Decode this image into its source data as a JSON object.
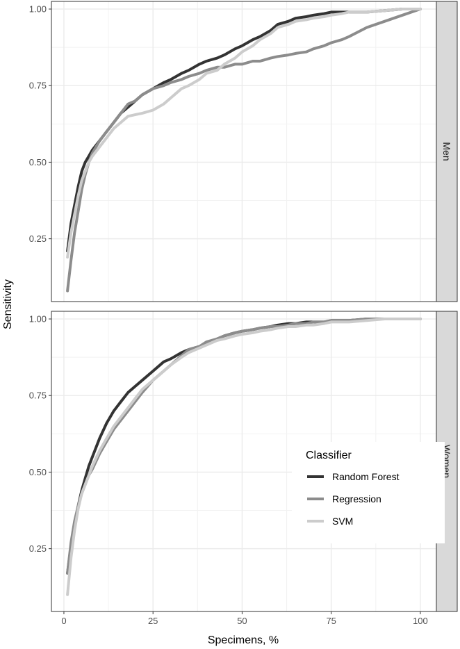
{
  "chart_data": {
    "type": "line",
    "xlabel": "Specimens, %",
    "ylabel": "Sensitivity",
    "xlim": [
      -3.5,
      104.5
    ],
    "ylim": [
      0.045,
      1.025
    ],
    "x_ticks": [
      0,
      25,
      50,
      75,
      100
    ],
    "x_tick_labels": [
      "0",
      "25",
      "50",
      "75",
      "100"
    ],
    "y_ticks": [
      0.25,
      0.5,
      0.75,
      1.0
    ],
    "y_tick_labels": [
      "0.25",
      "0.50",
      "0.75",
      "1.00"
    ],
    "grid": true,
    "legend": {
      "title": "Classifier",
      "position": "inside-bottom-right",
      "entries": [
        "Random Forest",
        "Regression",
        "SVM"
      ]
    },
    "series_colors": {
      "Random Forest": "#333333",
      "Regression": "#8c8c8c",
      "SVM": "#cccccc"
    },
    "panels": [
      {
        "strip": "Men",
        "series": [
          {
            "name": "Random Forest",
            "x": [
              1,
              2,
              3,
              4,
              5,
              6,
              7,
              8,
              10,
              12,
              14,
              16,
              18,
              20,
              22,
              25,
              28,
              30,
              33,
              35,
              38,
              40,
              43,
              45,
              48,
              50,
              53,
              55,
              58,
              60,
              63,
              65,
              68,
              70,
              73,
              75,
              78,
              80,
              85,
              90,
              95,
              100
            ],
            "y": [
              0.21,
              0.3,
              0.36,
              0.42,
              0.47,
              0.5,
              0.52,
              0.54,
              0.57,
              0.6,
              0.63,
              0.66,
              0.68,
              0.7,
              0.72,
              0.74,
              0.76,
              0.77,
              0.79,
              0.8,
              0.82,
              0.83,
              0.84,
              0.85,
              0.87,
              0.88,
              0.9,
              0.91,
              0.93,
              0.95,
              0.96,
              0.97,
              0.975,
              0.98,
              0.985,
              0.99,
              0.99,
              0.99,
              0.99,
              0.995,
              1.0,
              1.0
            ]
          },
          {
            "name": "Regression",
            "x": [
              1,
              2,
              3,
              4,
              5,
              6,
              7,
              8,
              10,
              12,
              14,
              16,
              18,
              20,
              22,
              25,
              28,
              30,
              33,
              35,
              38,
              40,
              43,
              45,
              48,
              50,
              53,
              55,
              58,
              60,
              63,
              65,
              68,
              70,
              73,
              75,
              78,
              80,
              85,
              90,
              95,
              100
            ],
            "y": [
              0.08,
              0.18,
              0.27,
              0.34,
              0.41,
              0.46,
              0.5,
              0.53,
              0.57,
              0.6,
              0.63,
              0.66,
              0.69,
              0.7,
              0.72,
              0.74,
              0.75,
              0.76,
              0.77,
              0.78,
              0.79,
              0.8,
              0.81,
              0.81,
              0.82,
              0.82,
              0.83,
              0.83,
              0.84,
              0.845,
              0.85,
              0.855,
              0.86,
              0.87,
              0.88,
              0.89,
              0.9,
              0.91,
              0.94,
              0.96,
              0.98,
              1.0
            ]
          },
          {
            "name": "SVM",
            "x": [
              1,
              2,
              3,
              4,
              5,
              6,
              7,
              8,
              10,
              12,
              14,
              16,
              18,
              20,
              22,
              25,
              28,
              30,
              33,
              35,
              38,
              40,
              43,
              45,
              48,
              50,
              53,
              55,
              58,
              60,
              63,
              65,
              68,
              70,
              73,
              75,
              78,
              80,
              85,
              90,
              95,
              100
            ],
            "y": [
              0.19,
              0.27,
              0.33,
              0.39,
              0.44,
              0.47,
              0.5,
              0.52,
              0.55,
              0.58,
              0.61,
              0.63,
              0.65,
              0.655,
              0.66,
              0.67,
              0.69,
              0.71,
              0.74,
              0.75,
              0.77,
              0.79,
              0.8,
              0.82,
              0.84,
              0.86,
              0.88,
              0.9,
              0.92,
              0.94,
              0.95,
              0.96,
              0.965,
              0.97,
              0.975,
              0.98,
              0.985,
              0.99,
              0.99,
              0.995,
              1.0,
              1.0
            ]
          }
        ]
      },
      {
        "strip": "Women",
        "series": [
          {
            "name": "Random Forest",
            "x": [
              1,
              2,
              3,
              4,
              5,
              6,
              7,
              8,
              10,
              12,
              14,
              16,
              18,
              20,
              22,
              25,
              28,
              30,
              33,
              35,
              38,
              40,
              43,
              45,
              48,
              50,
              53,
              55,
              58,
              60,
              63,
              65,
              68,
              70,
              73,
              75,
              78,
              80,
              85,
              90,
              95,
              100
            ],
            "y": [
              0.17,
              0.26,
              0.33,
              0.39,
              0.44,
              0.48,
              0.52,
              0.55,
              0.61,
              0.66,
              0.7,
              0.73,
              0.76,
              0.78,
              0.8,
              0.83,
              0.86,
              0.87,
              0.89,
              0.9,
              0.91,
              0.92,
              0.935,
              0.945,
              0.955,
              0.96,
              0.965,
              0.97,
              0.975,
              0.98,
              0.985,
              0.985,
              0.99,
              0.99,
              0.99,
              0.995,
              0.995,
              0.995,
              1.0,
              1.0,
              1.0,
              1.0
            ]
          },
          {
            "name": "Regression",
            "x": [
              1,
              2,
              3,
              4,
              5,
              6,
              7,
              8,
              10,
              12,
              14,
              16,
              18,
              20,
              22,
              25,
              28,
              30,
              33,
              35,
              38,
              40,
              43,
              45,
              48,
              50,
              53,
              55,
              58,
              60,
              63,
              65,
              68,
              70,
              73,
              75,
              78,
              80,
              85,
              90,
              95,
              100
            ],
            "y": [
              0.17,
              0.27,
              0.34,
              0.39,
              0.43,
              0.46,
              0.49,
              0.51,
              0.56,
              0.6,
              0.64,
              0.67,
              0.7,
              0.73,
              0.76,
              0.8,
              0.83,
              0.85,
              0.88,
              0.9,
              0.91,
              0.925,
              0.935,
              0.945,
              0.955,
              0.96,
              0.965,
              0.97,
              0.975,
              0.975,
              0.98,
              0.985,
              0.985,
              0.99,
              0.99,
              0.995,
              0.995,
              0.995,
              1.0,
              1.0,
              1.0,
              1.0
            ]
          },
          {
            "name": "SVM",
            "x": [
              1,
              2,
              3,
              4,
              5,
              6,
              7,
              8,
              10,
              12,
              14,
              16,
              18,
              20,
              22,
              25,
              28,
              30,
              33,
              35,
              38,
              40,
              43,
              45,
              48,
              50,
              53,
              55,
              58,
              60,
              63,
              65,
              68,
              70,
              73,
              75,
              78,
              80,
              85,
              90,
              95,
              100
            ],
            "y": [
              0.1,
              0.22,
              0.31,
              0.38,
              0.43,
              0.46,
              0.49,
              0.52,
              0.57,
              0.61,
              0.65,
              0.68,
              0.71,
              0.74,
              0.77,
              0.8,
              0.83,
              0.85,
              0.875,
              0.89,
              0.905,
              0.915,
              0.93,
              0.935,
              0.945,
              0.95,
              0.955,
              0.96,
              0.965,
              0.97,
              0.975,
              0.975,
              0.98,
              0.98,
              0.985,
              0.99,
              0.99,
              0.99,
              0.995,
              1.0,
              1.0,
              1.0
            ]
          }
        ]
      }
    ]
  }
}
